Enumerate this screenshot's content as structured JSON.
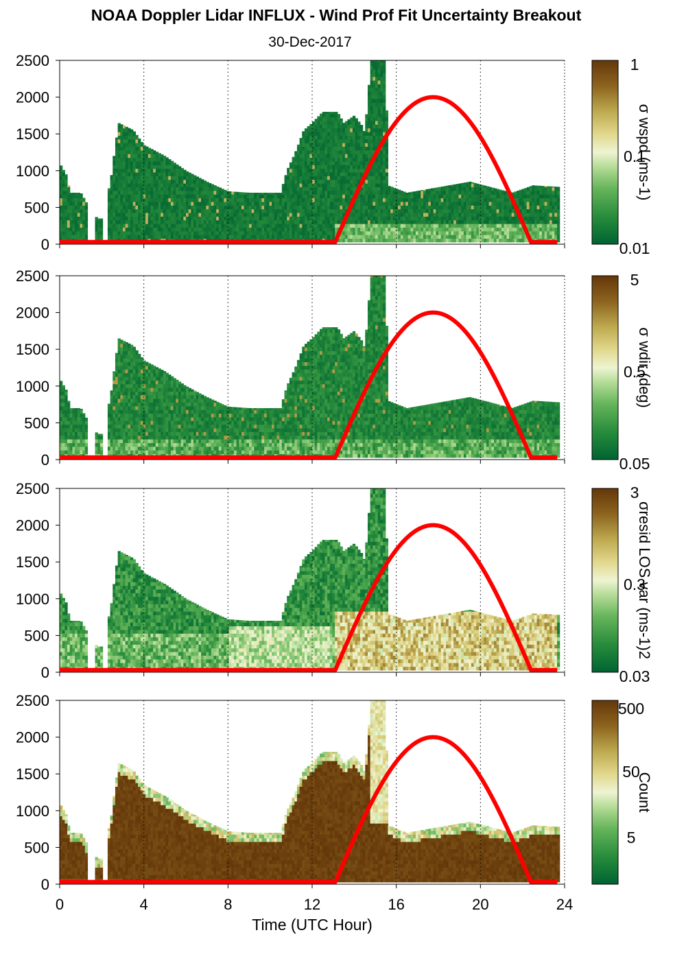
{
  "title": "NOAA Doppler Lidar INFLUX - Wind Prof Fit Uncertainty Breakout",
  "subtitle": "30-Dec-2017",
  "xlabel": "Time (UTC Hour)",
  "chart_data": [
    {
      "type": "heatmap",
      "name": "σ wspd",
      "colorbar_label": "σ wspd (ms-1)",
      "colorbar_ticks": [
        "1",
        "0.1",
        "0.01"
      ],
      "colorbar_scale": "log",
      "colorbar_range": [
        0.01,
        1
      ],
      "xlim": [
        0,
        24
      ],
      "ylim": [
        0,
        2500
      ],
      "xticks": [
        "0",
        "4",
        "8",
        "12",
        "16",
        "20",
        "24"
      ],
      "yticks": [
        "0",
        "500",
        "1000",
        "1500",
        "2000",
        "2500"
      ],
      "grid": "dotted vertical",
      "overlay": "solar elevation curve (red), zero from 0 to 13.1 h, rising to peak ~2000 at 17.8 h, back to zero at 22.4 h"
    },
    {
      "type": "heatmap",
      "name": "σ wdir",
      "colorbar_label": "σ wdir (deg)",
      "colorbar_ticks": [
        "5",
        "0.5",
        "0.05"
      ],
      "colorbar_scale": "log",
      "colorbar_range": [
        0.05,
        5
      ],
      "xlim": [
        0,
        24
      ],
      "ylim": [
        0,
        2500
      ],
      "xticks": [
        "0",
        "4",
        "8",
        "12",
        "16",
        "20",
        "24"
      ],
      "yticks": [
        "0",
        "500",
        "1000",
        "1500",
        "2000",
        "2500"
      ],
      "grid": "dotted vertical"
    },
    {
      "type": "heatmap",
      "name": "σresid LOS var",
      "colorbar_label": "σresid LOS var (ms-1)2",
      "colorbar_ticks": [
        "3",
        "0.3",
        "0.03"
      ],
      "colorbar_scale": "log",
      "colorbar_range": [
        0.03,
        3
      ],
      "xlim": [
        0,
        24
      ],
      "ylim": [
        0,
        2500
      ],
      "xticks": [
        "0",
        "4",
        "8",
        "12",
        "16",
        "20",
        "24"
      ],
      "yticks": [
        "0",
        "500",
        "1000",
        "1500",
        "2000",
        "2500"
      ],
      "grid": "dotted vertical"
    },
    {
      "type": "heatmap",
      "name": "Count",
      "colorbar_label": "Count",
      "colorbar_ticks": [
        "500",
        "50",
        "5"
      ],
      "colorbar_scale": "log",
      "colorbar_range": [
        1,
        1000
      ],
      "xlim": [
        0,
        24
      ],
      "ylim": [
        0,
        2500
      ],
      "xticks": [
        "0",
        "4",
        "8",
        "12",
        "16",
        "20",
        "24"
      ],
      "yticks": [
        "0",
        "500",
        "1000",
        "1500",
        "2000",
        "2500"
      ],
      "grid": "dotted vertical"
    }
  ],
  "data_extent": {
    "top_heights": [
      [
        0,
        1100
      ],
      [
        0.3,
        950
      ],
      [
        0.5,
        700
      ],
      [
        1.0,
        700
      ],
      [
        1.5,
        450
      ],
      [
        1.8,
        350
      ],
      [
        2.0,
        350
      ],
      [
        2.3,
        700
      ],
      [
        2.5,
        1000
      ],
      [
        2.6,
        1250
      ],
      [
        2.8,
        1650
      ],
      [
        3.5,
        1550
      ],
      [
        4.0,
        1350
      ],
      [
        5.0,
        1200
      ],
      [
        6.0,
        1000
      ],
      [
        7.0,
        850
      ],
      [
        8.0,
        720
      ],
      [
        9.0,
        700
      ],
      [
        10.0,
        700
      ],
      [
        10.5,
        700
      ],
      [
        10.8,
        1000
      ],
      [
        11.2,
        1250
      ],
      [
        11.6,
        1550
      ],
      [
        12.0,
        1650
      ],
      [
        12.5,
        1800
      ],
      [
        13.2,
        1800
      ],
      [
        13.5,
        1650
      ],
      [
        14.0,
        1750
      ],
      [
        14.4,
        1600
      ],
      [
        14.5,
        1500
      ],
      [
        14.8,
        2500
      ],
      [
        15.5,
        2500
      ],
      [
        15.6,
        800
      ],
      [
        16.5,
        700
      ],
      [
        17.5,
        750
      ],
      [
        19.5,
        850
      ],
      [
        21.5,
        700
      ],
      [
        22.5,
        800
      ],
      [
        23.7,
        780
      ]
    ],
    "gap_hours": [
      [
        1.3,
        1.7
      ],
      [
        2.05,
        2.25
      ]
    ],
    "solar_curve": {
      "start_hour": 13.1,
      "peak_hour": 17.8,
      "end_hour": 22.4,
      "peak_height": 2000,
      "baseline": 30
    }
  }
}
